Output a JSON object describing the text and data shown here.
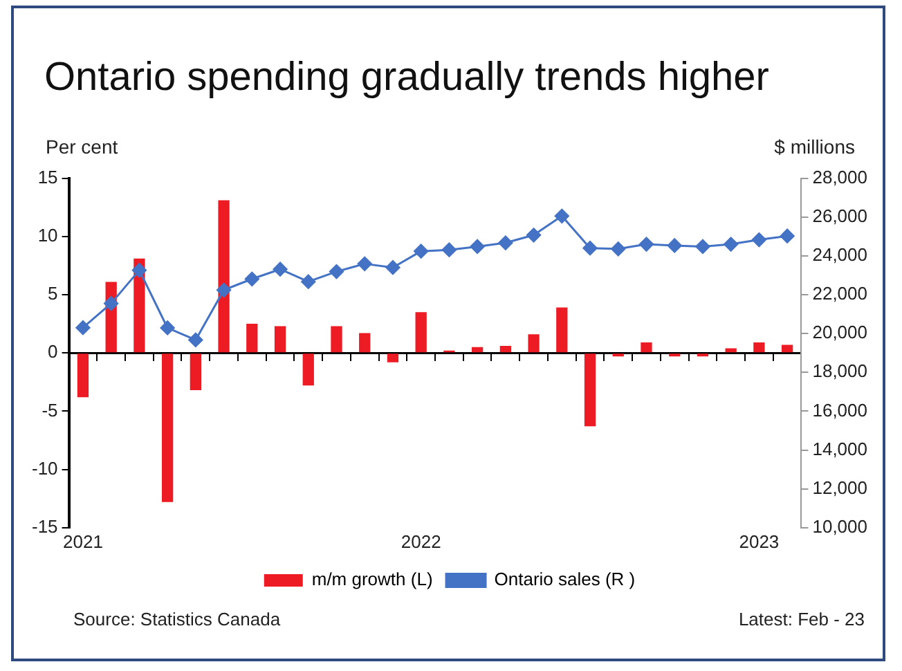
{
  "chart_data": {
    "type": "bar",
    "title": "Ontario spending gradually trends higher",
    "ylabel": "Per cent",
    "y2label": "$ millions",
    "annotations": [
      "Source: Statistics Canada",
      "Latest: Feb - 23"
    ],
    "categories": [
      "2021",
      null,
      null,
      null,
      null,
      null,
      null,
      null,
      null,
      null,
      null,
      null,
      "2022",
      null,
      null,
      null,
      null,
      null,
      null,
      null,
      null,
      null,
      null,
      null,
      "2023",
      null
    ],
    "series": [
      {
        "name": "m/m growth (L)",
        "color": "#ed1c24",
        "values": [
          -3.8,
          6.1,
          8.1,
          -12.8,
          -3.2,
          13.1,
          2.5,
          2.3,
          -2.8,
          2.3,
          1.7,
          -0.8,
          3.5,
          0.2,
          0.5,
          0.6,
          1.6,
          3.9,
          -6.3,
          -0.3,
          0.9,
          -0.3,
          -0.3,
          0.4,
          0.9,
          0.7
        ]
      },
      {
        "name": "Ontario sales (R )",
        "type": "line",
        "axis": "y2",
        "color": "#4472c4",
        "marker": "diamond",
        "values": [
          20300,
          21550,
          23260,
          20290,
          19670,
          22240,
          22810,
          23310,
          22670,
          23190,
          23590,
          23400,
          24240,
          24310,
          24480,
          24670,
          25070,
          26050,
          24400,
          24360,
          24600,
          24530,
          24480,
          24600,
          24830,
          25020
        ]
      }
    ],
    "ylim": [
      -15,
      15
    ],
    "yticks": [
      -15,
      -10,
      -5,
      0,
      5,
      10,
      15
    ],
    "y2lim": [
      10000,
      28000
    ],
    "y2ticks": [
      {
        "value": 10000,
        "label": "10,000"
      },
      {
        "value": 12000,
        "label": "12,000"
      },
      {
        "value": 14000,
        "label": "14,000"
      },
      {
        "value": 16000,
        "label": "16,000"
      },
      {
        "value": 18000,
        "label": "18,000"
      },
      {
        "value": 20000,
        "label": "20,000"
      },
      {
        "value": 22000,
        "label": "22,000"
      },
      {
        "value": 24000,
        "label": "24,000"
      },
      {
        "value": 26000,
        "label": "26,000"
      },
      {
        "value": 28000,
        "label": "28,000"
      }
    ],
    "legend": "bottom"
  }
}
